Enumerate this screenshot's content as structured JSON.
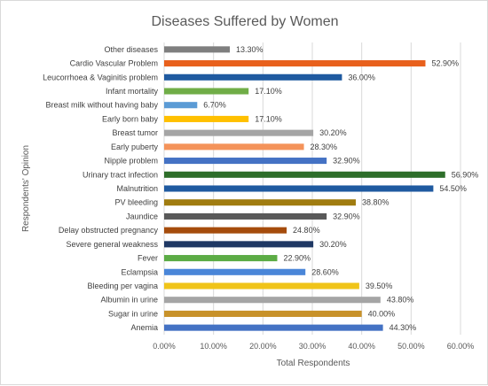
{
  "chart_data": {
    "type": "bar",
    "orientation": "horizontal",
    "title": "Diseases Suffered by Women",
    "xlabel": "Total Respondents",
    "ylabel": "Respondents' Opinion",
    "xlim": [
      0,
      60
    ],
    "x_ticks": [
      "0.00%",
      "10.00%",
      "20.00%",
      "30.00%",
      "40.00%",
      "50.00%",
      "60.00%"
    ],
    "grid": true,
    "legend": "none",
    "categories": [
      "Other diseases",
      "Cardio Vascular Problem",
      "Leucorrhoea & Vaginitis problem",
      "Infant mortality",
      "Breast milk without having baby",
      "Early born baby",
      "Breast tumor",
      "Early puberty",
      "Nipple problem",
      "Urinary tract infection",
      "Malnutrition",
      "PV bleeding",
      "Jaundice",
      "Delay obstructed pregnancy",
      "Severe general weakness",
      "Fever",
      "Eclampsia",
      "Bleeding per vagina",
      "Albumin in urine",
      "Sugar in urine",
      "Anemia"
    ],
    "values": [
      13.3,
      52.9,
      36.0,
      17.1,
      6.7,
      17.1,
      30.2,
      28.3,
      32.9,
      56.9,
      54.5,
      38.8,
      32.9,
      24.8,
      30.2,
      22.9,
      28.6,
      39.5,
      43.8,
      40.0,
      44.3
    ],
    "value_labels": [
      "13.30%",
      "52.90%",
      "36.00%",
      "17.10%",
      "6.70%",
      "17.10%",
      "30.20%",
      "28.30%",
      "32.90%",
      "56.90%",
      "54.50%",
      "38.80%",
      "32.90%",
      "24.80%",
      "30.20%",
      "22.90%",
      "28.60%",
      "39.50%",
      "43.80%",
      "40.00%",
      "44.30%"
    ],
    "colors": [
      "#7f7f7f",
      "#e8601c",
      "#1f5aa0",
      "#70ad47",
      "#5b9bd5",
      "#ffc000",
      "#a5a5a5",
      "#f4935a",
      "#4472c4",
      "#2e6e2a",
      "#1f5aa0",
      "#a07c10",
      "#595959",
      "#a54c0c",
      "#1f3864",
      "#5cac45",
      "#4a86d8",
      "#f0c419",
      "#a5a5a5",
      "#c8922a",
      "#4472c4"
    ]
  }
}
